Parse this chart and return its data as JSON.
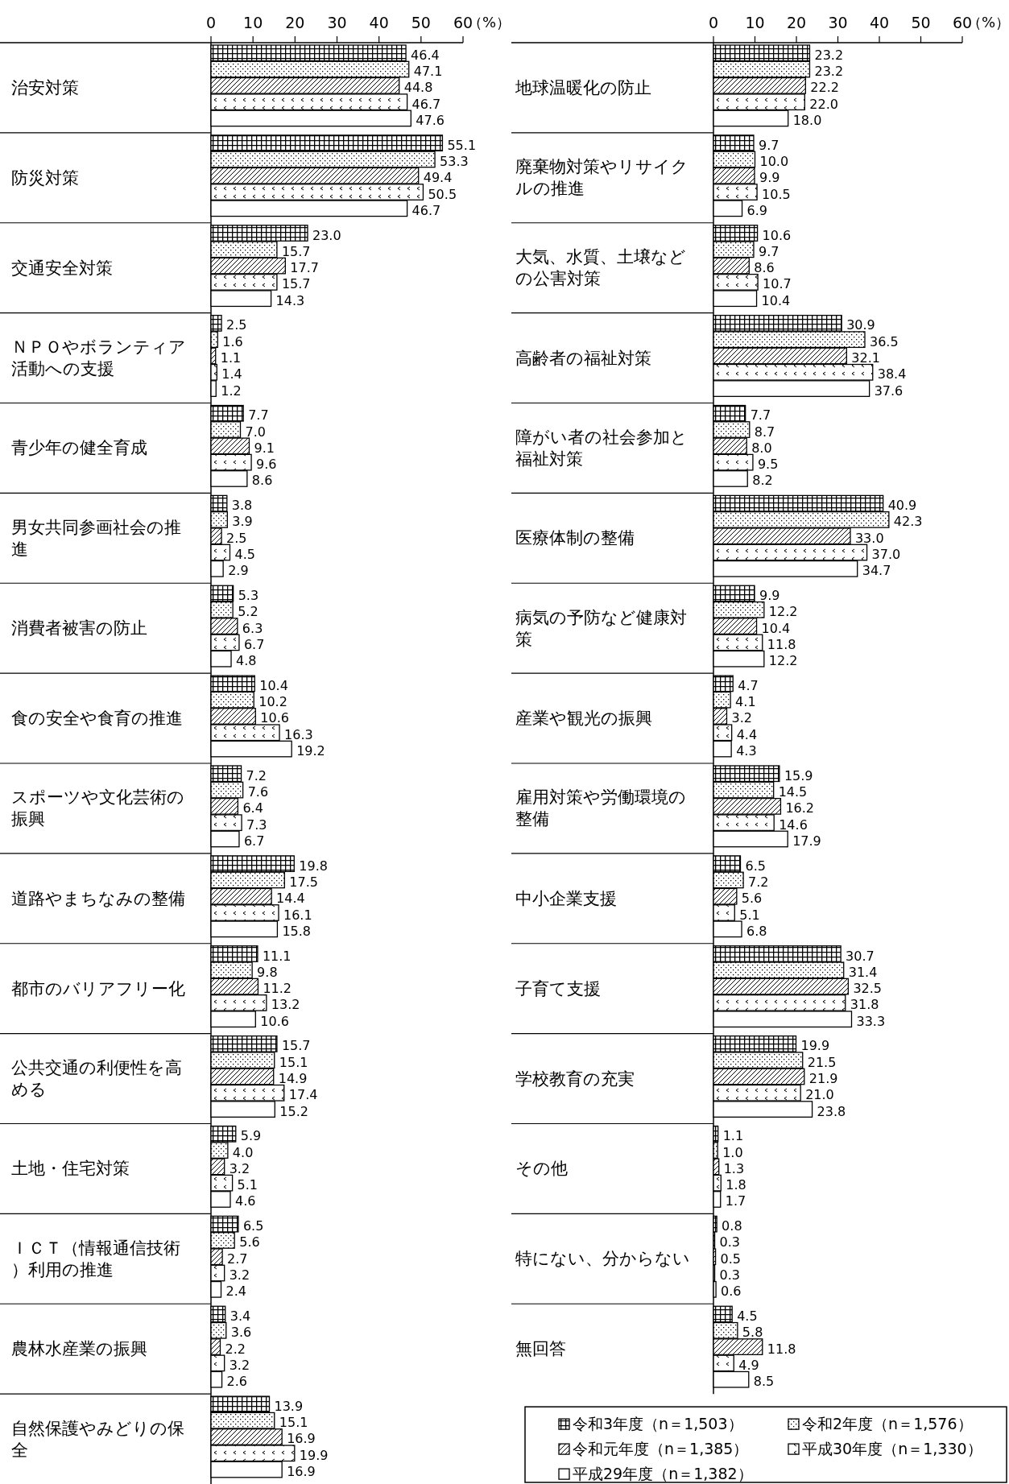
{
  "chart_data": [
    {
      "type": "bar",
      "orientation": "horizontal",
      "xlabel": "（%）",
      "xlim": [
        0,
        60
      ],
      "xticks": [
        0,
        10,
        20,
        30,
        40,
        50,
        60
      ],
      "legend": false,
      "categories": [
        "治安対策",
        "防災対策",
        "交通安全対策",
        "ＮＰＯやボランティア活動への支援",
        "青少年の健全育成",
        "男女共同参画社会の推進",
        "消費者被害の防止",
        "食の安全や食育の推進",
        "スポーツや文化芸術の振興",
        "道路やまちなみの整備",
        "都市のバリアフリー化",
        "公共交通の利便性を高める",
        "土地・住宅対策",
        "ＩＣＴ（情報通信技術）利用の推進",
        "農林水産業の振興",
        "自然保護やみどりの保全"
      ],
      "series": [
        {
          "color": "#000000",
          "values": [
            46.4,
            55.1,
            23.0,
            2.5,
            7.7,
            3.8,
            5.3,
            10.4,
            7.2,
            19.8,
            11.1,
            15.7,
            5.9,
            6.5,
            3.4,
            13.9
          ],
          "value_labels": [
            "46.4",
            "55.1",
            "23.0",
            "2.5",
            "7.7",
            "3.8",
            "5.3",
            "10.4",
            "7.2",
            "19.8",
            "11.1",
            "15.7",
            "5.9",
            "6.5",
            "3.4",
            "13.9"
          ]
        },
        {
          "color": "#000000",
          "values": [
            47.1,
            53.3,
            15.7,
            1.6,
            7.0,
            3.9,
            5.2,
            10.2,
            7.6,
            17.5,
            9.8,
            15.1,
            4.0,
            5.6,
            3.6,
            15.1
          ],
          "value_labels": [
            "47.1",
            "53.3",
            "15.7",
            "1.6",
            "7.0",
            "3.9",
            "5.2",
            "10.2",
            "7.6",
            "17.5",
            "9.8",
            "15.1",
            "4.0",
            "5.6",
            "3.6",
            "15.1"
          ]
        },
        {
          "color": "#000000",
          "values": [
            44.8,
            49.4,
            17.7,
            1.1,
            9.1,
            2.5,
            6.3,
            10.6,
            6.4,
            14.4,
            11.2,
            14.9,
            3.2,
            2.7,
            2.2,
            16.9
          ],
          "value_labels": [
            "44.8",
            "49.4",
            "17.7",
            "1.1",
            "9.1",
            "2.5",
            "6.3",
            "10.6",
            "6.4",
            "14.4",
            "11.2",
            "14.9",
            "3.2",
            "2.7",
            "2.2",
            "16.9"
          ]
        },
        {
          "color": "#000000",
          "values": [
            46.7,
            50.5,
            15.7,
            1.4,
            9.6,
            4.5,
            6.7,
            16.3,
            7.3,
            16.1,
            13.2,
            17.4,
            5.1,
            3.2,
            3.2,
            19.9
          ],
          "value_labels": [
            "46.7",
            "50.5",
            "15.7",
            "1.4",
            "9.6",
            "4.5",
            "6.7",
            "16.3",
            "7.3",
            "16.1",
            "13.2",
            "17.4",
            "5.1",
            "3.2",
            "3.2",
            "19.9"
          ]
        },
        {
          "color": "#000000",
          "values": [
            47.6,
            46.7,
            14.3,
            1.2,
            8.6,
            2.9,
            4.8,
            19.2,
            6.7,
            15.8,
            10.6,
            15.2,
            4.6,
            2.4,
            2.6,
            16.9
          ],
          "value_labels": [
            "47.6",
            "46.7",
            "14.3",
            "1.2",
            "8.6",
            "2.9",
            "4.8",
            "19.2",
            "6.7",
            "15.8",
            "10.6",
            "15.2",
            "4.6",
            "2.4",
            "2.6",
            "16.9"
          ]
        }
      ]
    },
    {
      "type": "bar",
      "orientation": "horizontal",
      "xlabel": "（%）",
      "xlim": [
        0,
        60
      ],
      "xticks": [
        0,
        10,
        20,
        30,
        40,
        50,
        60
      ],
      "legend": "bottom",
      "categories": [
        "地球温暖化の防止",
        "廃棄物対策やリサイクルの推進",
        "大気、水質、土壌などの公害対策",
        "高齢者の福祉対策",
        "障がい者の社会参加と福祉対策",
        "医療体制の整備",
        "病気の予防など健康対策",
        "産業や観光の振興",
        "雇用対策や労働環境の整備",
        "中小企業支援",
        "子育て支援",
        "学校教育の充実",
        "その他",
        "特にない、分からない",
        "無回答"
      ],
      "series": [
        {
          "name": "令和3年度（n＝1,503）",
          "color": "#000000",
          "values": [
            23.2,
            9.7,
            10.6,
            30.9,
            7.7,
            40.9,
            9.9,
            4.7,
            15.9,
            6.5,
            30.7,
            19.9,
            1.1,
            0.8,
            4.5
          ],
          "value_labels": [
            "23.2",
            "9.7",
            "10.6",
            "30.9",
            "7.7",
            "40.9",
            "9.9",
            "4.7",
            "15.9",
            "6.5",
            "30.7",
            "19.9",
            "1.1",
            "0.8",
            "4.5"
          ]
        },
        {
          "name": "令和2年度（n＝1,576）",
          "color": "#000000",
          "values": [
            23.2,
            10.0,
            9.7,
            36.5,
            8.7,
            42.3,
            12.2,
            4.1,
            14.5,
            7.2,
            31.4,
            21.5,
            1.0,
            0.3,
            5.8
          ],
          "value_labels": [
            "23.2",
            "10.0",
            "9.7",
            "36.5",
            "8.7",
            "42.3",
            "12.2",
            "4.1",
            "14.5",
            "7.2",
            "31.4",
            "21.5",
            "1.0",
            "0.3",
            "5.8"
          ]
        },
        {
          "name": "令和元年度（n＝1,385）",
          "color": "#000000",
          "values": [
            22.2,
            9.9,
            8.6,
            32.1,
            8.0,
            33.0,
            10.4,
            3.2,
            16.2,
            5.6,
            32.5,
            21.9,
            1.3,
            0.5,
            11.8
          ],
          "value_labels": [
            "22.2",
            "9.9",
            "8.6",
            "32.1",
            "8.0",
            "33.0",
            "10.4",
            "3.2",
            "16.2",
            "5.6",
            "32.5",
            "21.9",
            "1.3",
            "0.5",
            "11.8"
          ]
        },
        {
          "name": "平成30年度（n＝1,330）",
          "color": "#000000",
          "values": [
            22.0,
            10.5,
            10.7,
            38.4,
            9.5,
            37.0,
            11.8,
            4.4,
            14.6,
            5.1,
            31.8,
            21.0,
            1.8,
            0.3,
            4.9
          ],
          "value_labels": [
            "22.0",
            "10.5",
            "10.7",
            "38.4",
            "9.5",
            "37.0",
            "11.8",
            "4.4",
            "14.6",
            "5.1",
            "31.8",
            "21.0",
            "1.8",
            "0.3",
            "4.9"
          ]
        },
        {
          "name": "平成29年度（n＝1,382）",
          "color": "#000000",
          "values": [
            18.0,
            6.9,
            10.4,
            37.6,
            8.2,
            34.7,
            12.2,
            4.3,
            17.9,
            6.8,
            33.3,
            23.8,
            1.7,
            0.6,
            8.5
          ],
          "value_labels": [
            "18.0",
            "6.9",
            "10.4",
            "37.6",
            "8.2",
            "34.7",
            "12.2",
            "4.3",
            "17.9",
            "6.8",
            "33.3",
            "23.8",
            "1.7",
            "0.6",
            "8.5"
          ]
        }
      ]
    }
  ]
}
